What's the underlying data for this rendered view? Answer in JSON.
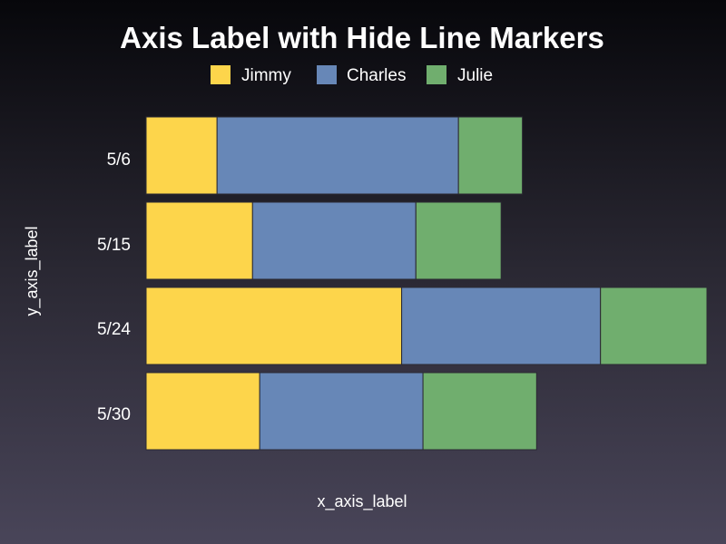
{
  "chart_data": {
    "type": "bar",
    "orientation": "horizontal",
    "stacked": true,
    "title": "Axis Label with Hide Line Markers",
    "xlabel": "x_axis_label",
    "ylabel": "y_axis_label",
    "categories": [
      "5/6",
      "5/15",
      "5/24",
      "5/30"
    ],
    "series": [
      {
        "name": "Jimmy",
        "values": [
          5,
          7.5,
          18,
          8
        ]
      },
      {
        "name": "Charles",
        "values": [
          17,
          11.5,
          14,
          11.5
        ]
      },
      {
        "name": "Julie",
        "values": [
          4.5,
          6,
          7.5,
          8
        ]
      }
    ],
    "colors": [
      "#fdd54b",
      "#6787b7",
      "#70ae6e"
    ],
    "xlim": [
      0,
      39.5
    ],
    "grid": false,
    "legend_position": "top",
    "axis_lines_visible": false
  }
}
